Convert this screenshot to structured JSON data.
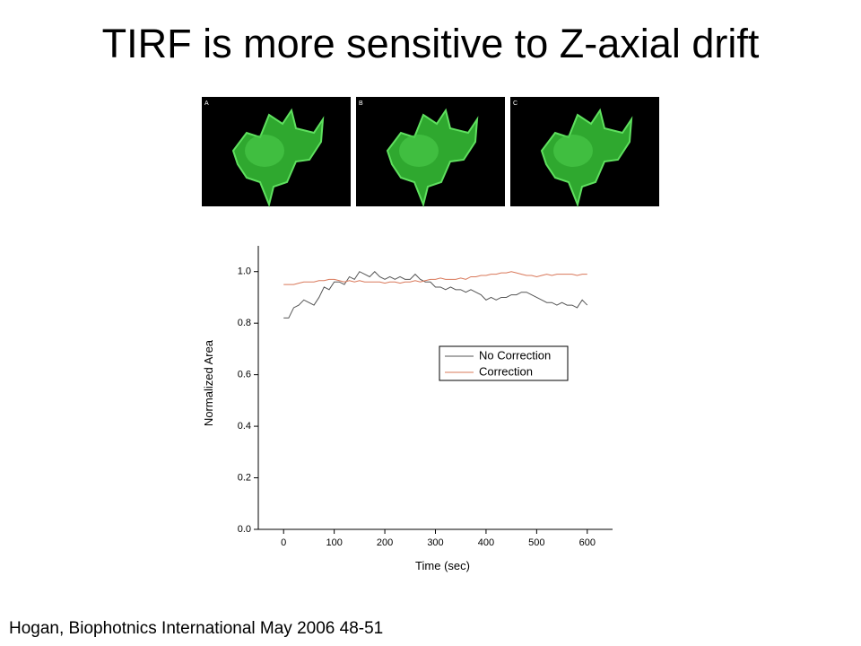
{
  "title": "TIRF is more sensitive to Z-axial drift",
  "citation": "Hogan, Biophotnics International May 2006 48-51",
  "panels": [
    "A",
    "B",
    "C"
  ],
  "chart_data": {
    "type": "line",
    "xlabel": "Time (sec)",
    "ylabel": "Normalized Area",
    "x": [
      0,
      10,
      20,
      30,
      40,
      50,
      60,
      70,
      80,
      90,
      100,
      110,
      120,
      130,
      140,
      150,
      160,
      170,
      180,
      190,
      200,
      210,
      220,
      230,
      240,
      250,
      260,
      270,
      280,
      290,
      300,
      310,
      320,
      330,
      340,
      350,
      360,
      370,
      380,
      390,
      400,
      410,
      420,
      430,
      440,
      450,
      460,
      470,
      480,
      490,
      500,
      510,
      520,
      530,
      540,
      550,
      560,
      570,
      580,
      590,
      600
    ],
    "series": [
      {
        "name": "No Correction",
        "color": "#555555",
        "values": [
          0.82,
          0.82,
          0.86,
          0.87,
          0.89,
          0.88,
          0.87,
          0.9,
          0.94,
          0.93,
          0.96,
          0.96,
          0.95,
          0.98,
          0.97,
          1.0,
          0.99,
          0.98,
          1.0,
          0.98,
          0.97,
          0.98,
          0.97,
          0.98,
          0.97,
          0.97,
          0.99,
          0.97,
          0.96,
          0.96,
          0.94,
          0.94,
          0.93,
          0.94,
          0.93,
          0.93,
          0.92,
          0.93,
          0.92,
          0.91,
          0.89,
          0.9,
          0.89,
          0.9,
          0.9,
          0.91,
          0.91,
          0.92,
          0.92,
          0.91,
          0.9,
          0.89,
          0.88,
          0.88,
          0.87,
          0.88,
          0.87,
          0.87,
          0.86,
          0.89,
          0.87
        ]
      },
      {
        "name": "Correction",
        "color": "#d9785a",
        "values": [
          0.95,
          0.95,
          0.95,
          0.955,
          0.96,
          0.96,
          0.96,
          0.965,
          0.965,
          0.97,
          0.97,
          0.965,
          0.96,
          0.965,
          0.96,
          0.965,
          0.96,
          0.96,
          0.96,
          0.96,
          0.955,
          0.96,
          0.96,
          0.955,
          0.96,
          0.96,
          0.965,
          0.96,
          0.965,
          0.97,
          0.97,
          0.975,
          0.97,
          0.97,
          0.97,
          0.975,
          0.97,
          0.98,
          0.98,
          0.985,
          0.985,
          0.99,
          0.99,
          0.995,
          0.995,
          1.0,
          0.995,
          0.99,
          0.985,
          0.985,
          0.98,
          0.985,
          0.99,
          0.985,
          0.99,
          0.99,
          0.99,
          0.99,
          0.985,
          0.99,
          0.99
        ]
      }
    ],
    "xlim": [
      -50,
      650
    ],
    "xticks": [
      0,
      100,
      200,
      300,
      400,
      500,
      600
    ],
    "ylim": [
      0,
      1.1
    ],
    "yticks": [
      {
        "value": 0,
        "label": "0.0"
      },
      0.2,
      0.4,
      0.6,
      0.8,
      {
        "value": 1,
        "label": "1.0"
      }
    ],
    "legend": "right",
    "grid": false
  }
}
